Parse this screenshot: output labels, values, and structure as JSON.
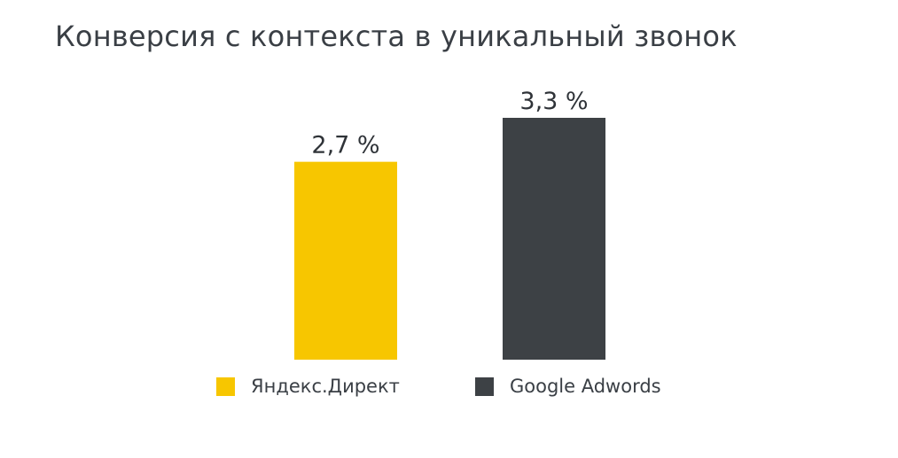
{
  "chart_data": {
    "type": "bar",
    "title": "Конверсия с контекста в уникальный звонок",
    "categories": [
      "Яндекс.Директ",
      "Google Adwords"
    ],
    "values": [
      2.7,
      3.3
    ],
    "value_labels": [
      "2,7 %",
      "3,3 %"
    ],
    "unit": "%",
    "colors": [
      "#f7c600",
      "#3d4145"
    ],
    "ylim": [
      0,
      3.3
    ],
    "grid": false,
    "axes_visible": false,
    "legend": {
      "placement": "bottom",
      "entries": [
        "Яндекс.Директ",
        "Google Adwords"
      ]
    }
  }
}
